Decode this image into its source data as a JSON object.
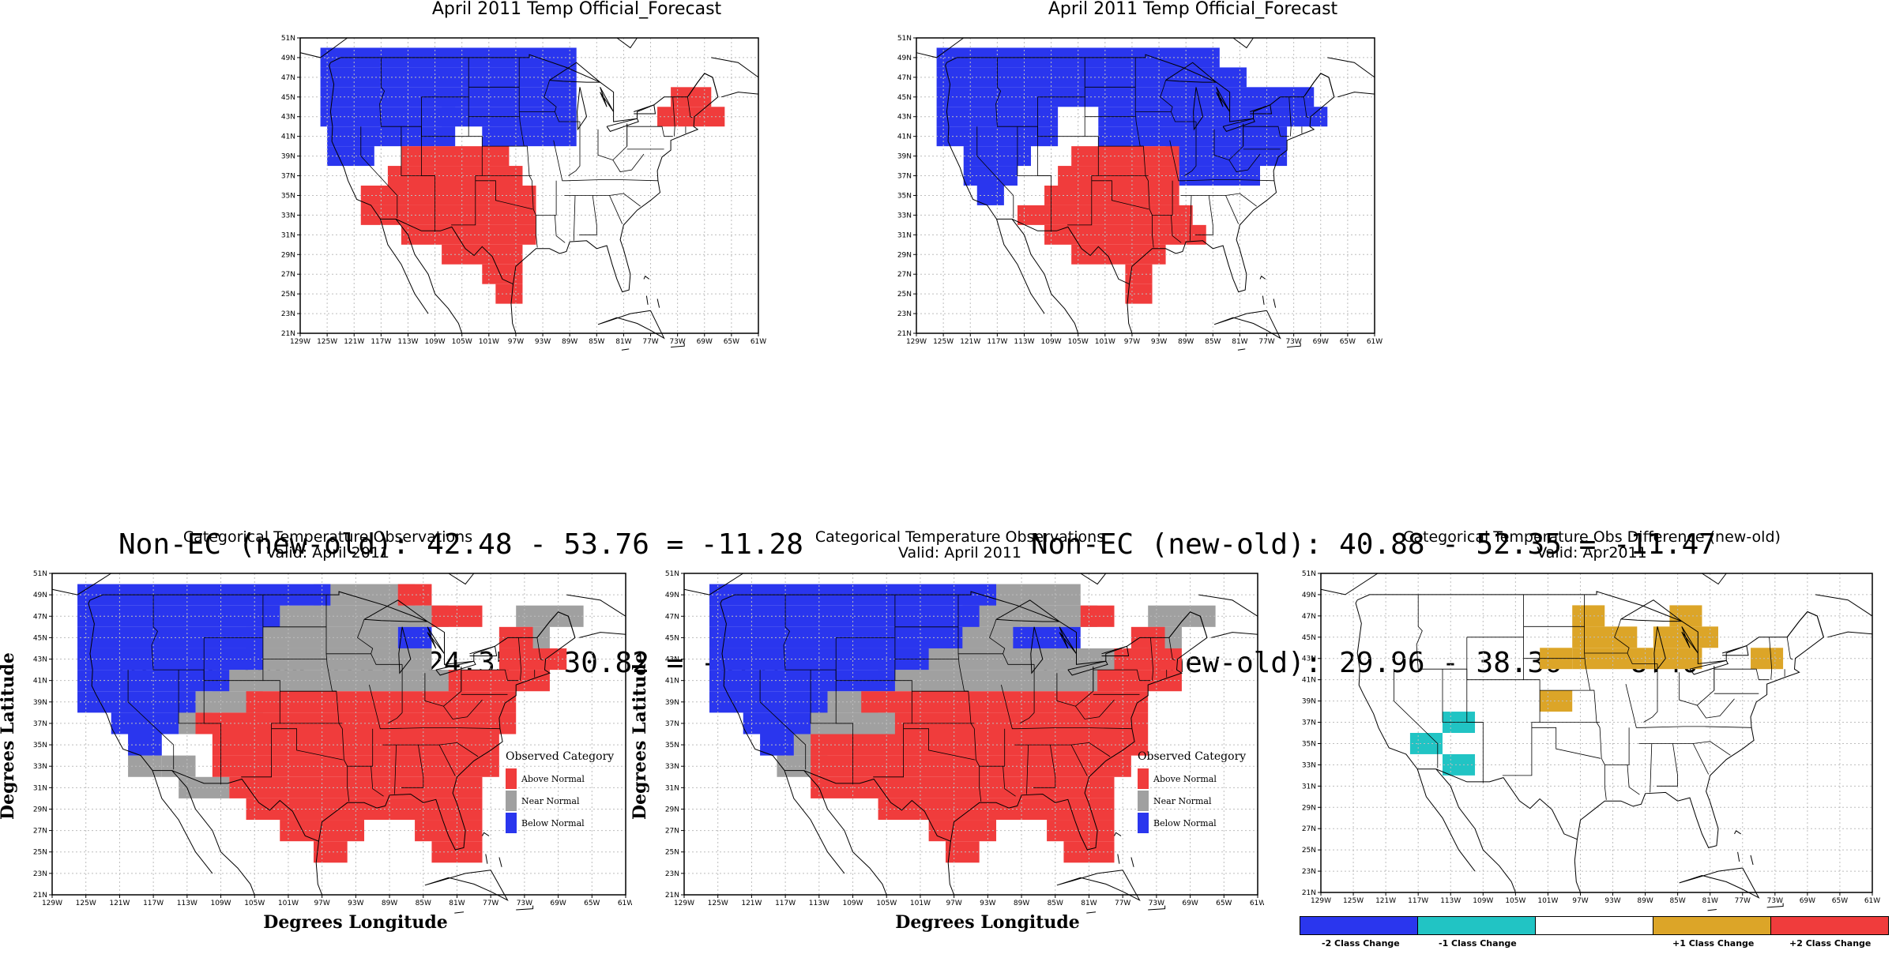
{
  "colors": {
    "above": "#f03c3c",
    "below": "#2a36ee",
    "near": "#a0a0a0",
    "minus1": "#21c4c4",
    "plus1": "#dca528",
    "minus2": "#2a36ee",
    "plus2": "#f03c3c",
    "grid": "#bdbdbd"
  },
  "lat_ticks": [
    "51N",
    "49N",
    "47N",
    "45N",
    "43N",
    "41N",
    "39N",
    "37N",
    "35N",
    "33N",
    "31N",
    "29N",
    "27N",
    "25N",
    "23N",
    "21N"
  ],
  "lon_ticks": [
    "129W",
    "125W",
    "121W",
    "117W",
    "113W",
    "109W",
    "105W",
    "101W",
    "97W",
    "93W",
    "89W",
    "85W",
    "81W",
    "77W",
    "73W",
    "69W",
    "65W",
    "61W"
  ],
  "forecast_left": {
    "title": "April 2011 Temp Official_Forecast",
    "below": [
      [
        49,
        125,
        89
      ],
      [
        47,
        125,
        89
      ],
      [
        45,
        125,
        89
      ],
      [
        43,
        125,
        107
      ],
      [
        43,
        107,
        89
      ],
      [
        41,
        124,
        107
      ],
      [
        41,
        101,
        89
      ],
      [
        39,
        124,
        119
      ]
    ],
    "above": [
      [
        45,
        73,
        69
      ],
      [
        43,
        75,
        67
      ],
      [
        39,
        113,
        99
      ],
      [
        37,
        115,
        97
      ],
      [
        35,
        119,
        95
      ],
      [
        33,
        119,
        95
      ],
      [
        31,
        113,
        95
      ],
      [
        29,
        107,
        97
      ],
      [
        27,
        101,
        97
      ],
      [
        25,
        99,
        97
      ]
    ]
  },
  "forecast_right": {
    "title": "April 2011 Temp Official_Forecast",
    "below": [
      [
        49,
        125,
        85
      ],
      [
        47,
        125,
        81
      ],
      [
        45,
        125,
        71
      ],
      [
        43,
        125,
        109
      ],
      [
        43,
        101,
        69
      ],
      [
        41,
        125,
        109
      ],
      [
        41,
        101,
        75
      ],
      [
        39,
        121,
        113
      ],
      [
        39,
        91,
        75
      ],
      [
        37,
        121,
        115
      ],
      [
        37,
        89,
        79
      ],
      [
        35,
        119,
        117
      ]
    ],
    "above": [
      [
        39,
        105,
        91
      ],
      [
        37,
        107,
        91
      ],
      [
        35,
        109,
        91
      ],
      [
        33,
        113,
        89
      ],
      [
        31,
        109,
        87
      ],
      [
        29,
        105,
        93
      ],
      [
        27,
        97,
        95
      ],
      [
        25,
        97,
        95
      ]
    ]
  },
  "stats_left": {
    "line1": "Non-EC (new-old): 42.48 - 53.76 = -11.28",
    "line2": "All-FC (new-old): 24.35 - 30.82 = -6.47"
  },
  "stats_right": {
    "line1": "Non-EC (new-old): 40.88 - 52.35 = -11.47",
    "line2": "All-FC (new-old): 29.96 - 38.36 = -8.40"
  },
  "obs_left": {
    "title": "Categorical Temperature Observations",
    "subtitle": "Valid: April 2011",
    "xlabel": "Degrees Longitude",
    "ylabel": "Degrees Latitude",
    "legend_title": "Observed Category",
    "legend": [
      "Above Normal",
      "Near Normal",
      "Below Normal"
    ],
    "below": [
      [
        49,
        125,
        97
      ],
      [
        47,
        125,
        103
      ],
      [
        45,
        125,
        105
      ],
      [
        43,
        125,
        105
      ],
      [
        41,
        125,
        109
      ],
      [
        39,
        125,
        113
      ],
      [
        37,
        121,
        115
      ],
      [
        35,
        119,
        117
      ],
      [
        33,
        117,
        119
      ],
      [
        45,
        87,
        85
      ]
    ],
    "near": [
      [
        49,
        97,
        87
      ],
      [
        47,
        103,
        83
      ],
      [
        45,
        105,
        89
      ],
      [
        43,
        105,
        85
      ],
      [
        41,
        109,
        81
      ],
      [
        39,
        113,
        105
      ],
      [
        37,
        113,
        111
      ],
      [
        35,
        113,
        115
      ],
      [
        33,
        119,
        117
      ],
      [
        33,
        115,
        113
      ],
      [
        31,
        113,
        109
      ],
      [
        47,
        73,
        67
      ],
      [
        45,
        73,
        71
      ]
    ],
    "above": [
      [
        49,
        87,
        85
      ],
      [
        47,
        83,
        79
      ],
      [
        45,
        75,
        73
      ],
      [
        43,
        75,
        69
      ],
      [
        41,
        81,
        71
      ],
      [
        39,
        105,
        75
      ],
      [
        37,
        111,
        75
      ],
      [
        35,
        109,
        77
      ],
      [
        33,
        109,
        77
      ],
      [
        31,
        107,
        79
      ],
      [
        29,
        105,
        79
      ],
      [
        27,
        101,
        93
      ],
      [
        27,
        85,
        79
      ],
      [
        25,
        97,
        95
      ],
      [
        25,
        83,
        79
      ]
    ]
  },
  "obs_right": {
    "title": "Categorical Temperature Observations",
    "subtitle": "Valid: April 2011",
    "xlabel": "Degrees Longitude",
    "ylabel": "Degrees Latitude",
    "legend_title": "Observed Category",
    "legend": [
      "Above Normal",
      "Near Normal",
      "Below Normal"
    ],
    "below": [
      [
        49,
        125,
        93
      ],
      [
        47,
        125,
        95
      ],
      [
        45,
        125,
        97
      ],
      [
        45,
        89,
        83
      ],
      [
        43,
        125,
        101
      ],
      [
        41,
        125,
        105
      ],
      [
        39,
        125,
        113
      ],
      [
        37,
        121,
        115
      ],
      [
        35,
        119,
        117
      ]
    ],
    "near": [
      [
        49,
        93,
        83
      ],
      [
        47,
        95,
        81
      ],
      [
        45,
        97,
        89
      ],
      [
        43,
        101,
        79
      ],
      [
        41,
        105,
        79
      ],
      [
        39,
        113,
        107
      ],
      [
        37,
        115,
        103
      ],
      [
        35,
        117,
        113
      ],
      [
        33,
        117,
        113
      ],
      [
        47,
        73,
        67
      ],
      [
        45,
        73,
        71
      ]
    ],
    "above": [
      [
        47,
        81,
        79
      ],
      [
        45,
        75,
        73
      ],
      [
        43,
        77,
        71
      ],
      [
        41,
        79,
        71
      ],
      [
        39,
        107,
        75
      ],
      [
        37,
        103,
        75
      ],
      [
        35,
        113,
        75
      ],
      [
        33,
        113,
        77
      ],
      [
        31,
        113,
        79
      ],
      [
        29,
        105,
        79
      ],
      [
        27,
        99,
        93
      ],
      [
        27,
        85,
        79
      ],
      [
        25,
        97,
        95
      ],
      [
        25,
        83,
        79
      ]
    ]
  },
  "diff": {
    "title": "Categorical Temperature Obs Difference (new-old)",
    "subtitle": "Valid: Apr2011",
    "minus1": [
      [
        37,
        113,
        111
      ],
      [
        35,
        117,
        115
      ],
      [
        33,
        113,
        111
      ]
    ],
    "plus1": [
      [
        47,
        97,
        95
      ],
      [
        47,
        85,
        83
      ],
      [
        45,
        97,
        91
      ],
      [
        45,
        87,
        81
      ],
      [
        43,
        101,
        99
      ],
      [
        43,
        97,
        89
      ],
      [
        43,
        87,
        83
      ],
      [
        43,
        75,
        73
      ],
      [
        39,
        101,
        99
      ]
    ],
    "legend": [
      "-2 Class Change",
      "-1 Class Change",
      "",
      "+1 Class Change",
      "+2 Class Change"
    ]
  }
}
